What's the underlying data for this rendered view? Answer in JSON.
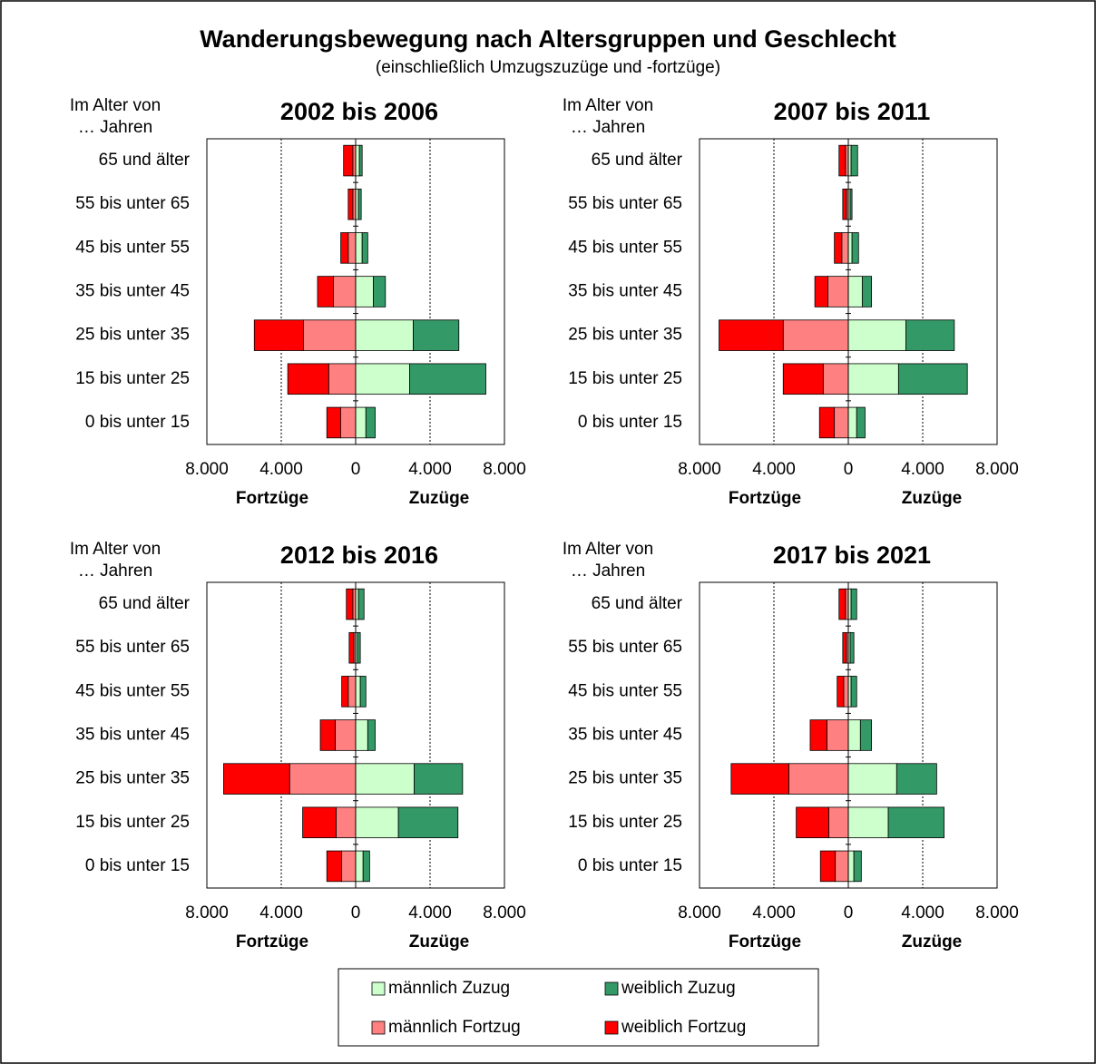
{
  "title": "Wanderungsbewegung nach Altersgruppen und Geschlecht",
  "subtitle": "(einschließlich Umzugszuzüge und -fortzüge)",
  "legend": {
    "series": [
      {
        "name": "männlich Zuzug",
        "color": "#ccffcc"
      },
      {
        "name": "weiblich Zuzug",
        "color": "#339966"
      },
      {
        "name": "männlich Fortzug",
        "color": "#ff8080"
      },
      {
        "name": "weiblich Fortzug",
        "color": "#ff0000"
      }
    ]
  },
  "chart_data": [
    {
      "type": "bar",
      "orientation": "horizontal",
      "stacked": true,
      "title": "2002 bis 2006",
      "y_label": [
        "Im Alter von",
        "… Jahren"
      ],
      "x_labels": [
        "Fortzüge",
        "Zuzüge"
      ],
      "categories": [
        "65 und älter",
        "55 bis unter 65",
        "45 bis unter 55",
        "35 bis unter 45",
        "25 bis unter 35",
        "15 bis unter 25",
        "0 bis unter 15"
      ],
      "series": [
        {
          "values": [
            200,
            150,
            350,
            950,
            3100,
            2900,
            550
          ]
        },
        {
          "values": [
            150,
            150,
            300,
            650,
            2450,
            4100,
            500
          ]
        },
        {
          "values": [
            -150,
            -150,
            -400,
            -1200,
            -2800,
            -1450,
            -800
          ]
        },
        {
          "values": [
            -500,
            -250,
            -400,
            -850,
            -2650,
            -2200,
            -750
          ]
        }
      ],
      "xlim": [
        -8000,
        8000
      ],
      "xticks": [
        {
          "value": -8000,
          "label": "8.000"
        },
        {
          "value": -4000,
          "label": "4.000"
        },
        0,
        {
          "value": 4000,
          "label": "4.000"
        },
        {
          "value": 8000,
          "label": "8.000"
        }
      ],
      "grid": true
    },
    {
      "type": "bar",
      "orientation": "horizontal",
      "stacked": true,
      "title": "2007 bis 2011",
      "y_label": [
        "Im Alter von",
        "… Jahren"
      ],
      "x_labels": [
        "Fortzüge",
        "Zuzüge"
      ],
      "categories": [
        "65 und älter",
        "55 bis unter 65",
        "45 bis unter 55",
        "35 bis unter 45",
        "25 bis unter 35",
        "15 bis unter 25",
        "0 bis unter 15"
      ],
      "series": [
        {
          "values": [
            150,
            100,
            200,
            750,
            3100,
            2700,
            450
          ]
        },
        {
          "values": [
            350,
            100,
            350,
            500,
            2600,
            3700,
            450
          ]
        },
        {
          "values": [
            -150,
            -100,
            -350,
            -1100,
            -3500,
            -1350,
            -750
          ]
        },
        {
          "values": [
            -350,
            -200,
            -400,
            -700,
            -3450,
            -2150,
            -800
          ]
        }
      ],
      "xlim": [
        -8000,
        8000
      ],
      "xticks": [
        {
          "value": -8000,
          "label": "8.000"
        },
        {
          "value": -4000,
          "label": "4.000"
        },
        0,
        {
          "value": 4000,
          "label": "4.000"
        },
        {
          "value": 8000,
          "label": "8.000"
        }
      ],
      "grid": true
    },
    {
      "type": "bar",
      "orientation": "horizontal",
      "stacked": true,
      "title": "2012 bis 2016",
      "y_label": [
        "Im Alter von",
        "… Jahren"
      ],
      "x_labels": [
        "Fortzüge",
        "Zuzüge"
      ],
      "categories": [
        "65 und älter",
        "55 bis unter 65",
        "45 bis unter 55",
        "35 bis unter 45",
        "25 bis unter 35",
        "15 bis unter 25",
        "0 bis unter 15"
      ],
      "series": [
        {
          "values": [
            150,
            100,
            250,
            650,
            3150,
            2300,
            400
          ]
        },
        {
          "values": [
            300,
            150,
            300,
            400,
            2600,
            3200,
            350
          ]
        },
        {
          "values": [
            -150,
            -100,
            -400,
            -1100,
            -3550,
            -1050,
            -750
          ]
        },
        {
          "values": [
            -350,
            -250,
            -350,
            -800,
            -3550,
            -1800,
            -800
          ]
        }
      ],
      "xlim": [
        -8000,
        8000
      ],
      "xticks": [
        {
          "value": -8000,
          "label": "8.000"
        },
        {
          "value": -4000,
          "label": "4.000"
        },
        0,
        {
          "value": 4000,
          "label": "4.000"
        },
        {
          "value": 8000,
          "label": "8.000"
        }
      ],
      "grid": true
    },
    {
      "type": "bar",
      "orientation": "horizontal",
      "stacked": true,
      "title": "2017 bis 2021",
      "y_label": [
        "Im Alter von",
        "… Jahren"
      ],
      "x_labels": [
        "Fortzüge",
        "Zuzüge"
      ],
      "categories": [
        "65 und älter",
        "55 bis unter 65",
        "45 bis unter 55",
        "35 bis unter 45",
        "25 bis unter 35",
        "15 bis unter 25",
        "0 bis unter 15"
      ],
      "series": [
        {
          "values": [
            150,
            100,
            150,
            650,
            2600,
            2150,
            300
          ]
        },
        {
          "values": [
            300,
            200,
            300,
            600,
            2150,
            3000,
            400
          ]
        },
        {
          "values": [
            -150,
            -100,
            -250,
            -1150,
            -3200,
            -1050,
            -700
          ]
        },
        {
          "values": [
            -350,
            -200,
            -350,
            -900,
            -3100,
            -1750,
            -800
          ]
        }
      ],
      "xlim": [
        -8000,
        8000
      ],
      "xticks": [
        {
          "value": -8000,
          "label": "8.000"
        },
        {
          "value": -4000,
          "label": "4.000"
        },
        0,
        {
          "value": 4000,
          "label": "4.000"
        },
        {
          "value": 8000,
          "label": "8.000"
        }
      ],
      "grid": true
    }
  ]
}
